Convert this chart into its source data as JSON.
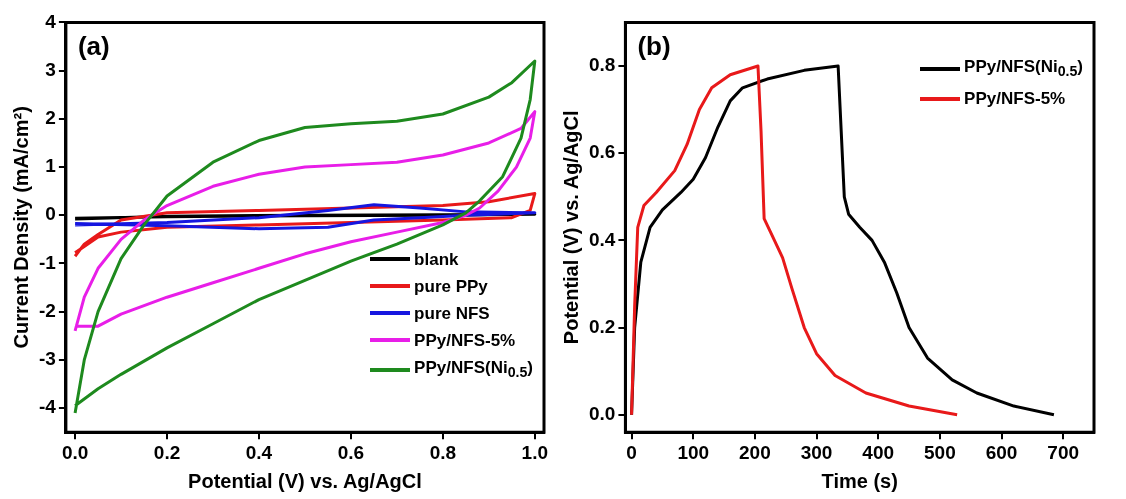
{
  "chart_data": [
    {
      "type": "line",
      "xlabel": "Potential (V) vs. Ag/AgCl",
      "ylabel": "Current Density (mA/cm²)",
      "annotations": [
        "(a)"
      ],
      "xlim": [
        -0.02,
        1.02
      ],
      "xticks": [
        {
          "value": 0,
          "label": "0.0"
        },
        0.2,
        0.4,
        0.6,
        0.8,
        {
          "value": 1,
          "label": "1.0"
        }
      ],
      "ylim": [
        -4.5,
        4
      ],
      "yticks": [
        -4,
        -3,
        -2,
        -1,
        0,
        1,
        2,
        3,
        4
      ],
      "legend": "bottom right",
      "grid": false,
      "marker": "none",
      "line_style": "solid",
      "series": [
        {
          "name": "blank",
          "color": "#000000",
          "x": [
            0,
            0.2,
            0.5,
            0.8,
            1.0,
            0.8,
            0.5,
            0.2,
            0
          ],
          "values": [
            -0.08,
            -0.02,
            0.0,
            0.01,
            0.02,
            0.0,
            -0.01,
            -0.03,
            -0.06
          ]
        },
        {
          "name": "pure PPy",
          "color": "#e8191a",
          "x": [
            0,
            0.02,
            0.05,
            0.1,
            0.2,
            0.4,
            0.6,
            0.8,
            0.9,
            1.0,
            0.99,
            0.95,
            0.8,
            0.6,
            0.4,
            0.2,
            0.1,
            0.05,
            0
          ],
          "values": [
            -0.85,
            -0.6,
            -0.4,
            -0.1,
            0.05,
            0.1,
            0.15,
            0.2,
            0.28,
            0.45,
            0.1,
            -0.05,
            -0.1,
            -0.15,
            -0.2,
            -0.25,
            -0.35,
            -0.45,
            -0.78
          ]
        },
        {
          "name": "pure NFS",
          "color": "#1616e0",
          "x": [
            0,
            0.2,
            0.4,
            0.55,
            0.65,
            0.75,
            0.85,
            1.0,
            0.85,
            0.75,
            0.65,
            0.55,
            0.4,
            0.2,
            0
          ],
          "values": [
            -0.2,
            -0.15,
            -0.05,
            0.1,
            0.22,
            0.15,
            0.07,
            0.05,
            0.0,
            -0.05,
            -0.1,
            -0.25,
            -0.28,
            -0.22,
            -0.17
          ]
        },
        {
          "name": "PPy/NFS-5%",
          "color": "#e81ee8",
          "x": [
            0,
            0.02,
            0.05,
            0.1,
            0.15,
            0.2,
            0.3,
            0.4,
            0.5,
            0.6,
            0.7,
            0.8,
            0.9,
            0.97,
            1.0,
            0.99,
            0.96,
            0.92,
            0.88,
            0.85,
            0.8,
            0.7,
            0.6,
            0.5,
            0.4,
            0.3,
            0.2,
            0.1,
            0.05,
            0
          ],
          "values": [
            -2.4,
            -1.7,
            -1.1,
            -0.5,
            -0.1,
            0.2,
            0.6,
            0.85,
            1.0,
            1.05,
            1.1,
            1.25,
            1.5,
            1.8,
            2.15,
            1.6,
            1.0,
            0.5,
            0.15,
            0.0,
            -0.15,
            -0.35,
            -0.55,
            -0.8,
            -1.1,
            -1.4,
            -1.7,
            -2.05,
            -2.3,
            -2.3
          ]
        },
        {
          "name": "PPy/NFS(Ni$_{0.5}$)",
          "color": "#1e8a1e",
          "x": [
            0,
            0.02,
            0.05,
            0.1,
            0.15,
            0.2,
            0.3,
            0.4,
            0.5,
            0.6,
            0.7,
            0.8,
            0.9,
            0.95,
            1.0,
            0.99,
            0.97,
            0.93,
            0.88,
            0.85,
            0.8,
            0.7,
            0.6,
            0.5,
            0.4,
            0.3,
            0.2,
            0.1,
            0.05,
            0
          ],
          "values": [
            -4.1,
            -3.0,
            -2.0,
            -0.9,
            -0.2,
            0.4,
            1.1,
            1.55,
            1.82,
            1.9,
            1.95,
            2.1,
            2.45,
            2.75,
            3.2,
            2.4,
            1.6,
            0.8,
            0.3,
            0.05,
            -0.2,
            -0.6,
            -0.95,
            -1.35,
            -1.75,
            -2.25,
            -2.75,
            -3.3,
            -3.6,
            -3.95
          ]
        }
      ]
    },
    {
      "type": "line",
      "xlabel": "Time (s)",
      "ylabel": "Potential (V) vs. Ag/AgCl",
      "annotations": [
        "(b)"
      ],
      "xlim": [
        -10,
        750
      ],
      "xticks": [
        0,
        100,
        200,
        300,
        400,
        500,
        600,
        700
      ],
      "ylim": [
        -0.04,
        0.9
      ],
      "yticks": [
        {
          "value": 0,
          "label": "0.0"
        },
        0.2,
        0.4,
        0.6,
        0.8
      ],
      "legend": "top right",
      "grid": false,
      "marker": "none",
      "line_style": "solid",
      "series": [
        {
          "name": "PPy/NFS(Ni$_{0.5}$)",
          "color": "#000000",
          "x": [
            0,
            5,
            15,
            30,
            50,
            80,
            100,
            120,
            140,
            160,
            180,
            220,
            280,
            335,
            340,
            345,
            352,
            370,
            390,
            410,
            430,
            450,
            480,
            520,
            560,
            620,
            685
          ],
          "values": [
            0,
            0.2,
            0.35,
            0.43,
            0.47,
            0.51,
            0.54,
            0.59,
            0.66,
            0.72,
            0.75,
            0.77,
            0.79,
            0.8,
            0.65,
            0.5,
            0.46,
            0.43,
            0.4,
            0.35,
            0.28,
            0.2,
            0.13,
            0.08,
            0.05,
            0.02,
            0
          ]
        },
        {
          "name": "PPy/NFS-5%",
          "color": "#e8191a",
          "x": [
            0,
            5,
            10,
            20,
            40,
            70,
            90,
            110,
            130,
            160,
            205,
            210,
            215,
            225,
            245,
            260,
            280,
            300,
            330,
            380,
            450,
            528
          ],
          "values": [
            0,
            0.25,
            0.43,
            0.48,
            0.51,
            0.56,
            0.62,
            0.7,
            0.75,
            0.78,
            0.8,
            0.65,
            0.45,
            0.42,
            0.36,
            0.29,
            0.2,
            0.14,
            0.09,
            0.05,
            0.02,
            0
          ]
        }
      ]
    }
  ]
}
